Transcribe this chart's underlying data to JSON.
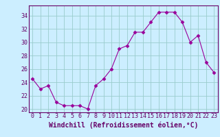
{
  "x": [
    0,
    1,
    2,
    3,
    4,
    5,
    6,
    7,
    8,
    9,
    10,
    11,
    12,
    13,
    14,
    15,
    16,
    17,
    18,
    19,
    20,
    21,
    22,
    23
  ],
  "y": [
    24.5,
    23.0,
    23.5,
    21.0,
    20.5,
    20.5,
    20.5,
    20.0,
    23.5,
    24.5,
    26.0,
    29.0,
    29.5,
    31.5,
    31.5,
    33.0,
    34.5,
    34.5,
    34.5,
    33.0,
    30.0,
    31.0,
    27.0,
    25.5
  ],
  "line_color": "#990099",
  "marker": "D",
  "marker_size": 2.5,
  "bg_color": "#cceeff",
  "grid_color": "#99cccc",
  "xlabel": "Windchill (Refroidissement éolien,°C)",
  "xlabel_color": "#660066",
  "xlabel_fontsize": 7,
  "tick_color": "#660066",
  "tick_fontsize": 6,
  "ytick_labels": [
    "20",
    "22",
    "24",
    "26",
    "28",
    "30",
    "32",
    "34"
  ],
  "yticks": [
    20,
    22,
    24,
    26,
    28,
    30,
    32,
    34
  ],
  "ylim": [
    19.5,
    35.5
  ],
  "xlim": [
    -0.5,
    23.5
  ],
  "xticks": [
    0,
    1,
    2,
    3,
    4,
    5,
    6,
    7,
    8,
    9,
    10,
    11,
    12,
    13,
    14,
    15,
    16,
    17,
    18,
    19,
    20,
    21,
    22,
    23
  ]
}
